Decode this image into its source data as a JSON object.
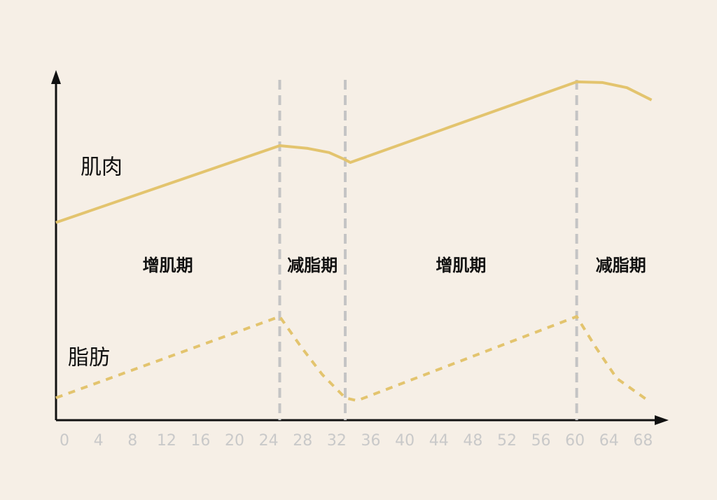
{
  "chart_data": {
    "type": "line",
    "xlim": [
      -1,
      70.6
    ],
    "ylim": [
      0,
      100
    ],
    "xticks": [
      0,
      4,
      8,
      12,
      16,
      20,
      24,
      28,
      32,
      36,
      40,
      44,
      48,
      52,
      56,
      60,
      64,
      68
    ],
    "phase_boundaries": [
      25.3,
      33,
      60.2
    ],
    "phases": [
      "增肌期",
      "减脂期",
      "增肌期",
      "减脂期"
    ],
    "series": [
      {
        "name": "肌肉",
        "color": "#e3c46e",
        "dashed": false,
        "x": [
          -1,
          25.3,
          28.6,
          31.1,
          33,
          33.6,
          60.2,
          63.2,
          66.1,
          69
        ],
        "values": [
          57.6,
          80,
          79.2,
          78,
          75.9,
          75.1,
          98.6,
          98.4,
          96.9,
          93.3
        ]
      },
      {
        "name": "脂肪",
        "color": "#e3c46e",
        "dashed": true,
        "x": [
          -1,
          25.3,
          27.8,
          30.3,
          33,
          34.4,
          60.2,
          62.4,
          64.9,
          68.6
        ],
        "values": [
          6.5,
          30.2,
          21.4,
          13.3,
          6.5,
          5.7,
          30.2,
          21.4,
          12.2,
          5.7
        ]
      }
    ]
  }
}
